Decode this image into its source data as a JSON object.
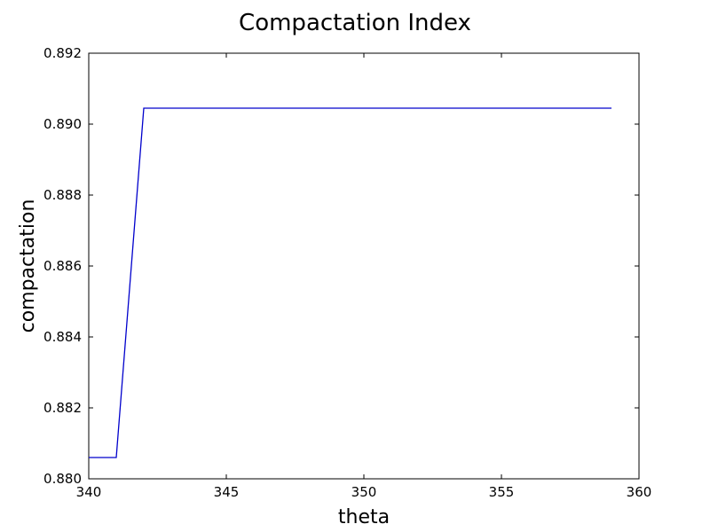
{
  "chart_data": {
    "type": "line",
    "title": "Compactation Index",
    "xlabel": "theta",
    "ylabel": "compactation",
    "xlim": [
      340,
      360
    ],
    "ylim": [
      0.88,
      0.892
    ],
    "x_ticks": [
      "340",
      "345",
      "350",
      "355",
      "360"
    ],
    "y_ticks": [
      "0.880",
      "0.882",
      "0.884",
      "0.886",
      "0.888",
      "0.890",
      "0.892"
    ],
    "grid": false,
    "legend": "none",
    "series": [
      {
        "color": "#0000cc",
        "x": [
          340,
          341,
          342,
          343,
          344,
          345,
          346,
          347,
          348,
          349,
          350,
          351,
          352,
          353,
          354,
          355,
          356,
          357,
          358,
          359
        ],
        "y": [
          0.8806,
          0.8806,
          0.89045,
          0.89045,
          0.89045,
          0.89045,
          0.89045,
          0.89045,
          0.89045,
          0.89045,
          0.89045,
          0.89045,
          0.89045,
          0.89045,
          0.89045,
          0.89045,
          0.89045,
          0.89045,
          0.89045,
          0.89045
        ]
      }
    ]
  }
}
